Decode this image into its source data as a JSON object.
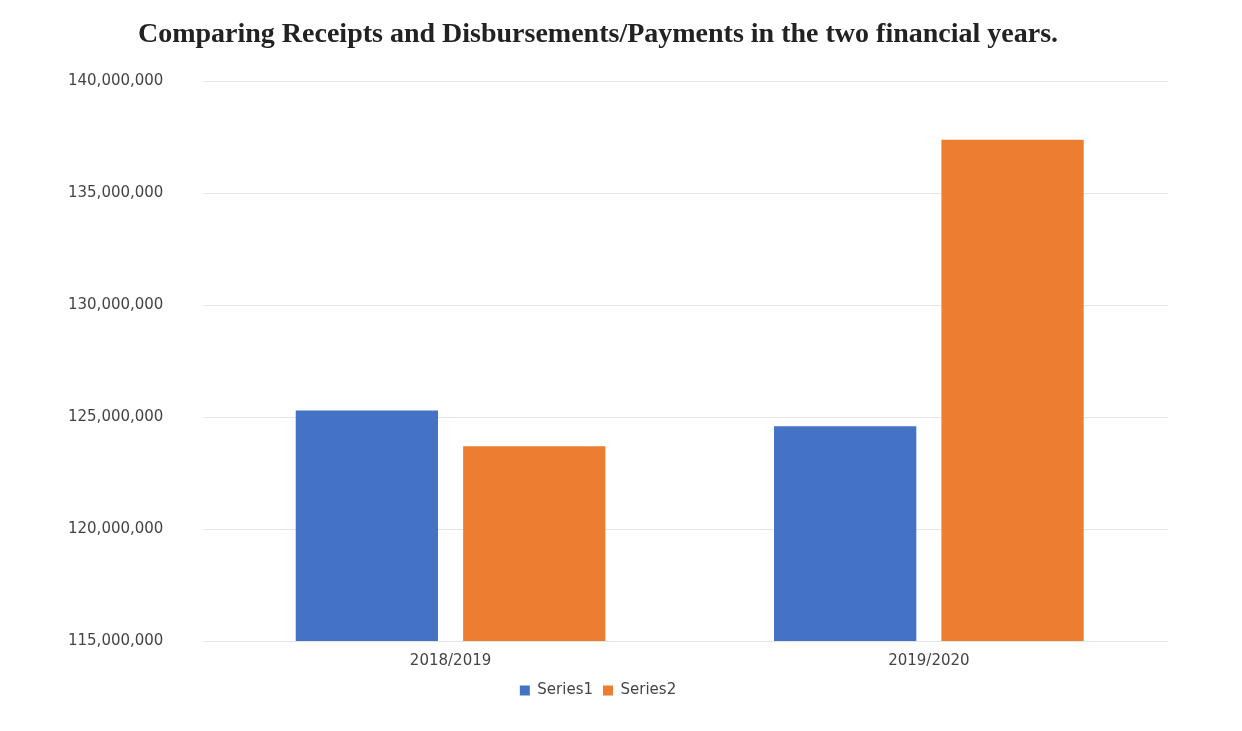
{
  "chart_data": {
    "type": "bar",
    "title": "Comparing Receipts and Disbursements/Payments in the two financial years.",
    "categories": [
      "2018/2019",
      "2019/2020"
    ],
    "series": [
      {
        "name": "Series1",
        "color": "#4472c4",
        "values": [
          125300000,
          124600000
        ]
      },
      {
        "name": "Series2",
        "color": "#ed7d31",
        "values": [
          123700000,
          137400000
        ]
      }
    ],
    "ylim": [
      115000000,
      140000000
    ],
    "yticks": [
      {
        "value": 115000000,
        "label": "115,000,000"
      },
      {
        "value": 120000000,
        "label": "120,000,000"
      },
      {
        "value": 125000000,
        "label": "125,000,000"
      },
      {
        "value": 130000000,
        "label": "130,000,000"
      },
      {
        "value": 135000000,
        "label": "135,000,000"
      },
      {
        "value": 140000000,
        "label": "140,000,000"
      }
    ],
    "grid": "y",
    "legend": "bottom"
  }
}
